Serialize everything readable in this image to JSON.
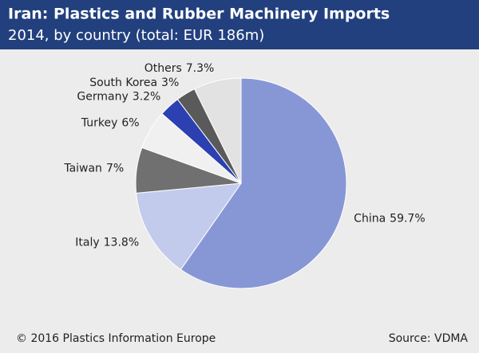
{
  "chart_data": {
    "type": "pie",
    "title": "Iran: Plastics and Rubber Machinery Imports",
    "subtitle": "2014, by country (total: EUR 186m)",
    "categories": [
      "China",
      "Italy",
      "Taiwan",
      "Turkey",
      "Germany",
      "South Korea",
      "Others"
    ],
    "values": [
      59.7,
      13.8,
      7,
      6,
      3.2,
      3,
      7.3
    ],
    "value_labels": [
      "59.7%",
      "13.8%",
      "7%",
      "6%",
      "3.2%",
      "3%",
      "7.3%"
    ],
    "colors": [
      "#8797d6",
      "#c3cbec",
      "#707070",
      "#f0f0f0",
      "#2c40b2",
      "#5a5a5a",
      "#e2e2e2"
    ],
    "credit": "© 2016 Plastics Information Europe",
    "source": "Source: VDMA"
  }
}
